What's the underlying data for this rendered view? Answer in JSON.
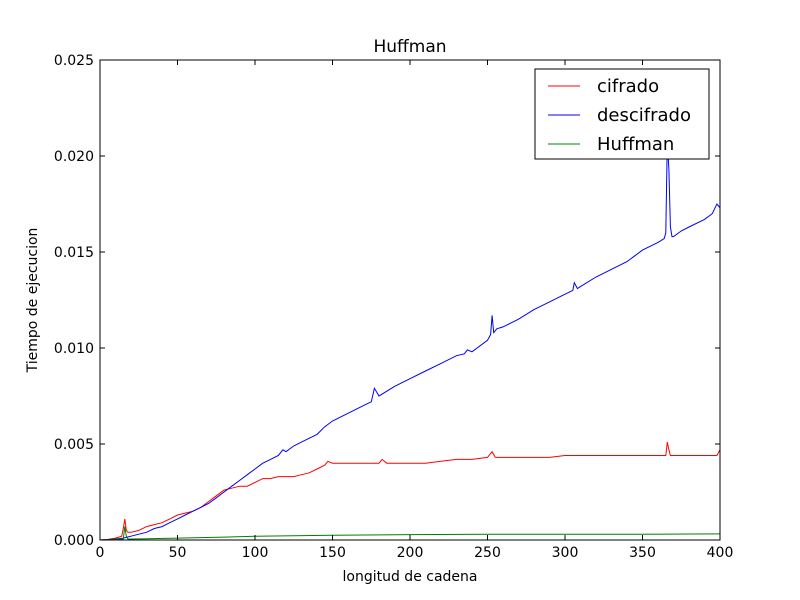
{
  "chart_data": {
    "type": "line",
    "title": "Huffman",
    "xlabel": "longitud de cadena",
    "ylabel": "Tiempo de ejecucion",
    "xlim": [
      0,
      400
    ],
    "ylim": [
      0,
      0.025
    ],
    "xticks": [
      0,
      50,
      100,
      150,
      200,
      250,
      300,
      350,
      400
    ],
    "xtick_labels": [
      "0",
      "50",
      "100",
      "150",
      "200",
      "250",
      "300",
      "350",
      "400"
    ],
    "yticks": [
      0,
      0.005,
      0.01,
      0.015,
      0.02,
      0.025
    ],
    "ytick_labels": [
      "0.000",
      "0.005",
      "0.010",
      "0.015",
      "0.020",
      "0.025"
    ],
    "grid": false,
    "legend_position": "top-right",
    "series": [
      {
        "name": "cifrado",
        "color": "#ff0000",
        "x": [
          0,
          5,
          10,
          14,
          15,
          16,
          17,
          18,
          20,
          25,
          30,
          35,
          40,
          45,
          50,
          55,
          60,
          65,
          70,
          75,
          80,
          85,
          90,
          95,
          100,
          105,
          110,
          115,
          120,
          125,
          130,
          135,
          140,
          145,
          147,
          150,
          160,
          170,
          180,
          182,
          185,
          190,
          200,
          210,
          220,
          230,
          240,
          250,
          253,
          255,
          260,
          270,
          280,
          290,
          300,
          310,
          320,
          330,
          340,
          350,
          360,
          365,
          366,
          367,
          368,
          370,
          380,
          390,
          398,
          400
        ],
        "y": [
          0,
          3e-05,
          0.0001,
          0.0002,
          0.0006,
          0.0011,
          0.0005,
          0.0004,
          0.0004,
          0.0005,
          0.0007,
          0.0008,
          0.0009,
          0.0011,
          0.0013,
          0.0014,
          0.0015,
          0.0017,
          0.002,
          0.0023,
          0.0026,
          0.0027,
          0.0028,
          0.0028,
          0.003,
          0.0032,
          0.0032,
          0.0033,
          0.0033,
          0.0033,
          0.0034,
          0.0035,
          0.0037,
          0.0039,
          0.0041,
          0.004,
          0.004,
          0.004,
          0.004,
          0.0042,
          0.004,
          0.004,
          0.004,
          0.004,
          0.0041,
          0.0042,
          0.0042,
          0.0043,
          0.0046,
          0.0043,
          0.0043,
          0.0043,
          0.0043,
          0.0043,
          0.0044,
          0.0044,
          0.0044,
          0.0044,
          0.0044,
          0.0044,
          0.0044,
          0.0044,
          0.0051,
          0.0047,
          0.0044,
          0.0044,
          0.0044,
          0.0044,
          0.0044,
          0.0047
        ]
      },
      {
        "name": "descifrado",
        "color": "#0000ff",
        "x": [
          0,
          5,
          10,
          15,
          20,
          25,
          30,
          35,
          40,
          45,
          50,
          55,
          60,
          65,
          70,
          75,
          80,
          85,
          90,
          95,
          100,
          105,
          110,
          115,
          118,
          120,
          125,
          130,
          135,
          140,
          145,
          150,
          160,
          170,
          175,
          177,
          180,
          190,
          200,
          210,
          220,
          230,
          235,
          237,
          240,
          250,
          252,
          253,
          254,
          256,
          260,
          270,
          280,
          290,
          300,
          305,
          306,
          308,
          310,
          320,
          330,
          340,
          345,
          350,
          360,
          364,
          365,
          366,
          367,
          368,
          369,
          370,
          375,
          380,
          390,
          395,
          398,
          400
        ],
        "y": [
          0,
          2e-05,
          5e-05,
          0.0001,
          0.0002,
          0.0003,
          0.0004,
          0.0006,
          0.0007,
          0.0009,
          0.0011,
          0.0013,
          0.0015,
          0.0017,
          0.0019,
          0.0022,
          0.0025,
          0.0028,
          0.0031,
          0.0034,
          0.0037,
          0.004,
          0.0042,
          0.0044,
          0.0047,
          0.0046,
          0.0049,
          0.0051,
          0.0053,
          0.0055,
          0.0059,
          0.0062,
          0.0066,
          0.007,
          0.0072,
          0.0079,
          0.0075,
          0.008,
          0.0084,
          0.0088,
          0.0092,
          0.0096,
          0.0097,
          0.0099,
          0.0098,
          0.0104,
          0.0107,
          0.0117,
          0.0108,
          0.011,
          0.0111,
          0.0115,
          0.012,
          0.0124,
          0.0128,
          0.013,
          0.0134,
          0.0131,
          0.0132,
          0.0137,
          0.0141,
          0.0145,
          0.0148,
          0.0151,
          0.0155,
          0.0157,
          0.016,
          0.0208,
          0.0193,
          0.0163,
          0.0158,
          0.0158,
          0.0161,
          0.0163,
          0.0167,
          0.017,
          0.0175,
          0.0173
        ]
      },
      {
        "name": "Huffman",
        "color": "#008000",
        "x": [
          0,
          10,
          15,
          16,
          17,
          18,
          20,
          30,
          50,
          80,
          100,
          150,
          200,
          250,
          300,
          350,
          400
        ],
        "y": [
          0,
          3e-05,
          5e-05,
          0.0007,
          0.0002,
          5e-05,
          5e-05,
          6e-05,
          0.0001,
          0.00015,
          0.0002,
          0.00025,
          0.00028,
          0.0003,
          0.0003,
          0.0003,
          0.00032
        ]
      }
    ]
  }
}
